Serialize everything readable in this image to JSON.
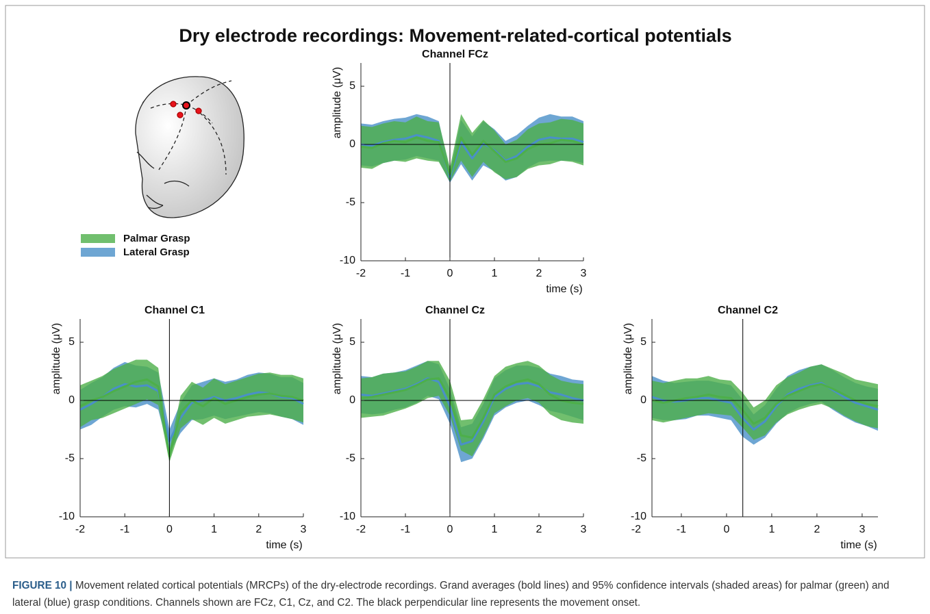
{
  "title": "Dry electrode recordings: Movement-related-cortical potentials",
  "chart_data": [
    {
      "type": "line-band",
      "title": "Channel FCz",
      "xlabel": "time (s)",
      "ylabel": "amplitude (μV)",
      "xlim": [
        -2,
        3
      ],
      "ylim": [
        -10,
        7
      ],
      "xticks": [
        -2,
        -1,
        0,
        1,
        2,
        3
      ],
      "yticks": [
        -10,
        -5,
        0,
        5
      ],
      "onset": 0,
      "x": [
        -2,
        -1.75,
        -1.5,
        -1.25,
        -1,
        -0.75,
        -0.5,
        -0.25,
        0,
        0.25,
        0.5,
        0.75,
        1,
        1.25,
        1.5,
        1.75,
        2,
        2.25,
        2.5,
        2.75,
        3
      ],
      "series": [
        {
          "name": "Lateral Grasp",
          "color": "#4a90c8",
          "values": [
            0,
            -0.1,
            0.2,
            0.4,
            0.5,
            0.8,
            0.6,
            0.3,
            -2.8,
            0.2,
            -1.2,
            0.1,
            -0.5,
            -1.4,
            -1,
            -0.2,
            0.4,
            0.6,
            0.5,
            0.5,
            0.2
          ],
          "ci": [
            1.8,
            1.8,
            1.8,
            1.8,
            1.8,
            1.8,
            1.8,
            1.7,
            0.5,
            1.9,
            1.9,
            1.9,
            1.8,
            1.7,
            1.8,
            1.8,
            1.9,
            2,
            1.9,
            1.9,
            1.8
          ]
        },
        {
          "name": "Palmar Grasp",
          "color": "#4daf4a",
          "values": [
            -0.2,
            -0.3,
            0.1,
            0.3,
            0.2,
            0.6,
            0.3,
            0.2,
            -2.6,
            0.6,
            -0.9,
            0.3,
            -0.6,
            -1.5,
            -1.2,
            -0.4,
            0,
            0.1,
            0.4,
            0.3,
            0
          ],
          "ci": [
            1.8,
            1.8,
            1.7,
            1.7,
            1.7,
            1.8,
            1.7,
            1.7,
            0.6,
            2,
            1.9,
            1.8,
            1.8,
            1.5,
            1.6,
            1.7,
            1.8,
            1.8,
            1.8,
            1.8,
            1.8
          ]
        }
      ]
    },
    {
      "type": "line-band",
      "title": "Channel C1",
      "xlabel": "time (s)",
      "ylabel": "amplitude (μV)",
      "xlim": [
        -2,
        3
      ],
      "ylim": [
        -10,
        7
      ],
      "xticks": [
        -2,
        -1,
        0,
        1,
        2,
        3
      ],
      "yticks": [
        -10,
        -5,
        0,
        5
      ],
      "onset": 0,
      "x": [
        -2,
        -1.75,
        -1.5,
        -1.25,
        -1,
        -0.75,
        -0.5,
        -0.25,
        0,
        0.25,
        0.5,
        0.75,
        1,
        1.25,
        1.5,
        1.75,
        2,
        2.25,
        2.5,
        2.75,
        3
      ],
      "series": [
        {
          "name": "Lateral Grasp",
          "color": "#4a90c8",
          "values": [
            -0.8,
            -0.3,
            0.3,
            1,
            1.4,
            1.2,
            1.3,
            0.8,
            -3.5,
            -1.5,
            -0.2,
            0,
            0.3,
            0,
            0.2,
            0.5,
            0.7,
            0.6,
            0.3,
            0.2,
            -0.3
          ],
          "ci": [
            1.7,
            1.8,
            1.7,
            1.8,
            1.9,
            1.8,
            1.6,
            1.6,
            1,
            1.3,
            1.5,
            1.6,
            1.6,
            1.6,
            1.6,
            1.7,
            1.7,
            1.7,
            1.7,
            1.8,
            1.8
          ]
        },
        {
          "name": "Palmar Grasp",
          "color": "#4daf4a",
          "values": [
            -0.5,
            0,
            0.3,
            0.8,
            1.2,
            1.6,
            1.8,
            1.2,
            -4.8,
            -1,
            0,
            -0.5,
            0.2,
            -0.3,
            0,
            0.3,
            0.5,
            0.6,
            0.4,
            0.3,
            0
          ],
          "ci": [
            1.8,
            1.7,
            1.8,
            1.9,
            1.9,
            1.9,
            1.7,
            1.6,
            0.5,
            1.4,
            1.6,
            1.6,
            1.7,
            1.7,
            1.7,
            1.7,
            1.8,
            1.8,
            1.8,
            1.9,
            1.9
          ]
        }
      ]
    },
    {
      "type": "line-band",
      "title": "Channel Cz",
      "ylabel": "amplitude (μV)",
      "xlim": [
        -2,
        3
      ],
      "ylim": [
        -10,
        7
      ],
      "xticks": [
        -2,
        -1,
        0,
        1,
        2,
        3
      ],
      "yticks": [
        -10,
        -5,
        0,
        5
      ],
      "onset": 0,
      "x": [
        -2,
        -1.75,
        -1.5,
        -1.25,
        -1,
        -0.75,
        -0.5,
        -0.25,
        0,
        0.25,
        0.5,
        0.75,
        1,
        1.25,
        1.5,
        1.75,
        2,
        2.25,
        2.5,
        2.75,
        3
      ],
      "series": [
        {
          "name": "Lateral Grasp",
          "color": "#4a90c8",
          "values": [
            0.5,
            0.4,
            0.6,
            0.8,
            1,
            1.4,
            1.9,
            1.6,
            -0.5,
            -3.8,
            -3.5,
            -1.8,
            0.3,
            1,
            1.4,
            1.5,
            1.2,
            0.7,
            0.5,
            0.2,
            0
          ],
          "ci": [
            1.6,
            1.6,
            1.7,
            1.6,
            1.6,
            1.6,
            1.5,
            1.5,
            1.5,
            1.5,
            1.5,
            1.5,
            1.6,
            1.6,
            1.6,
            1.5,
            1.6,
            1.6,
            1.6,
            1.6,
            1.7
          ]
        },
        {
          "name": "Palmar Grasp",
          "color": "#4daf4a",
          "values": [
            0.2,
            0.3,
            0.5,
            0.7,
            0.9,
            1.3,
            1.8,
            1.9,
            0.2,
            -3,
            -3.2,
            -1.5,
            0.5,
            1.2,
            1.6,
            1.8,
            1.4,
            0.5,
            0,
            -0.2,
            -0.3
          ],
          "ci": [
            1.7,
            1.7,
            1.8,
            1.7,
            1.6,
            1.6,
            1.6,
            1.5,
            1.5,
            1.3,
            1.6,
            1.6,
            1.6,
            1.7,
            1.6,
            1.6,
            1.6,
            1.7,
            1.7,
            1.7,
            1.7
          ]
        }
      ]
    },
    {
      "type": "line-band",
      "title": "Channel C2",
      "xlabel": "time (s)",
      "ylabel": "amplitude (μV)",
      "xlim": [
        -1.65,
        3.35
      ],
      "ylim": [
        -10,
        7
      ],
      "xticks": [
        -2,
        -1,
        0,
        1,
        2,
        3
      ],
      "yticks": [
        -10,
        -5,
        0,
        5
      ],
      "onset": 0.36,
      "x": [
        -1.65,
        -1.4,
        -1.15,
        -0.9,
        -0.65,
        -0.4,
        -0.15,
        0.1,
        0.35,
        0.6,
        0.85,
        1.1,
        1.35,
        1.6,
        1.85,
        2.1,
        2.35,
        2.6,
        2.85,
        3.1,
        3.35
      ],
      "series": [
        {
          "name": "Lateral Grasp",
          "color": "#4a90c8",
          "values": [
            0.3,
            0,
            -0.1,
            0,
            0.2,
            0.2,
            0,
            -0.2,
            -1.5,
            -2.5,
            -1.8,
            -0.5,
            0.5,
            1,
            1.3,
            1.5,
            0.9,
            0.3,
            -0.2,
            -0.5,
            -0.8
          ],
          "ci": [
            1.8,
            1.7,
            1.6,
            1.6,
            1.5,
            1.5,
            1.5,
            1.5,
            1.6,
            1.3,
            1.4,
            1.5,
            1.6,
            1.6,
            1.6,
            1.6,
            1.7,
            1.7,
            1.7,
            1.7,
            1.8
          ]
        },
        {
          "name": "Palmar Grasp",
          "color": "#4daf4a",
          "values": [
            0,
            -0.2,
            0,
            0.2,
            0.3,
            0.5,
            0.3,
            0.2,
            -0.8,
            -2,
            -1.5,
            -0.3,
            0.4,
            0.8,
            1.2,
            1.4,
            1,
            0.5,
            0,
            -0.3,
            -0.5
          ],
          "ci": [
            1.7,
            1.7,
            1.7,
            1.7,
            1.6,
            1.6,
            1.5,
            1.5,
            1.5,
            1.4,
            1.5,
            1.6,
            1.6,
            1.6,
            1.7,
            1.7,
            1.7,
            1.8,
            1.8,
            1.9,
            1.9
          ]
        }
      ]
    }
  ],
  "caption": {
    "label": "FIGURE 10 |",
    "text": "Movement related cortical potentials (MRCPs) of the dry-electrode recordings. Grand averages (bold lines) and 95% confidence intervals (shaded areas) for palmar (green) and lateral (blue) grasp conditions. Channels shown are FCz, C1, Cz, and C2. The black perpendicular line represents the movement onset."
  }
}
